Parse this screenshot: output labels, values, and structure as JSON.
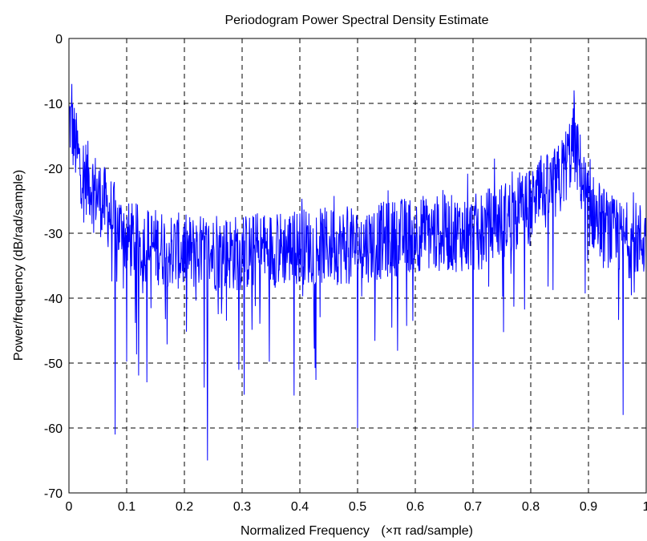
{
  "chart_data": {
    "type": "line",
    "title": "Periodogram Power Spectral Density Estimate",
    "xlabel_main": "Normalized Frequency",
    "xlabel_unit": "(×π rad/sample)",
    "ylabel": "Power/frequency (dB/rad/sample)",
    "xlim": [
      0,
      1
    ],
    "ylim": [
      -70,
      0
    ],
    "x_ticks": [
      0,
      0.1,
      0.2,
      0.3,
      0.4,
      0.5,
      0.6,
      0.7,
      0.8,
      0.9,
      1
    ],
    "x_tick_labels": [
      "0",
      "0.1",
      "0.2",
      "0.3",
      "0.4",
      "0.5",
      "0.6",
      "0.7",
      "0.8",
      "0.9",
      "1"
    ],
    "y_ticks": [
      0,
      -10,
      -20,
      -30,
      -40,
      -50,
      -60,
      -70
    ],
    "y_tick_labels": [
      "0",
      "-10",
      "-20",
      "-30",
      "-40",
      "-50",
      "-60",
      "-70"
    ],
    "grid": true,
    "line_color": "#0000ff",
    "series": [
      {
        "x_range": [
          0,
          1
        ],
        "envelope_x": [
          0,
          0.01,
          0.02,
          0.05,
          0.1,
          0.15,
          0.2,
          0.3,
          0.4,
          0.5,
          0.6,
          0.7,
          0.8,
          0.85,
          0.875,
          0.9,
          0.95,
          1
        ],
        "envelope_mean_db": [
          -12,
          -16,
          -20,
          -24,
          -31,
          -32,
          -33,
          -33,
          -32,
          -32,
          -30,
          -30,
          -26,
          -22,
          -16,
          -26,
          -31,
          -31
        ],
        "spread_db": 6,
        "notable_points": [
          {
            "x": 0.005,
            "y": -7
          },
          {
            "x": 0.08,
            "y": -61
          },
          {
            "x": 0.24,
            "y": -65
          },
          {
            "x": 0.39,
            "y": -55
          },
          {
            "x": 0.5,
            "y": -60
          },
          {
            "x": 0.7,
            "y": -60
          },
          {
            "x": 0.875,
            "y": -8
          },
          {
            "x": 0.96,
            "y": -58
          }
        ]
      }
    ]
  }
}
